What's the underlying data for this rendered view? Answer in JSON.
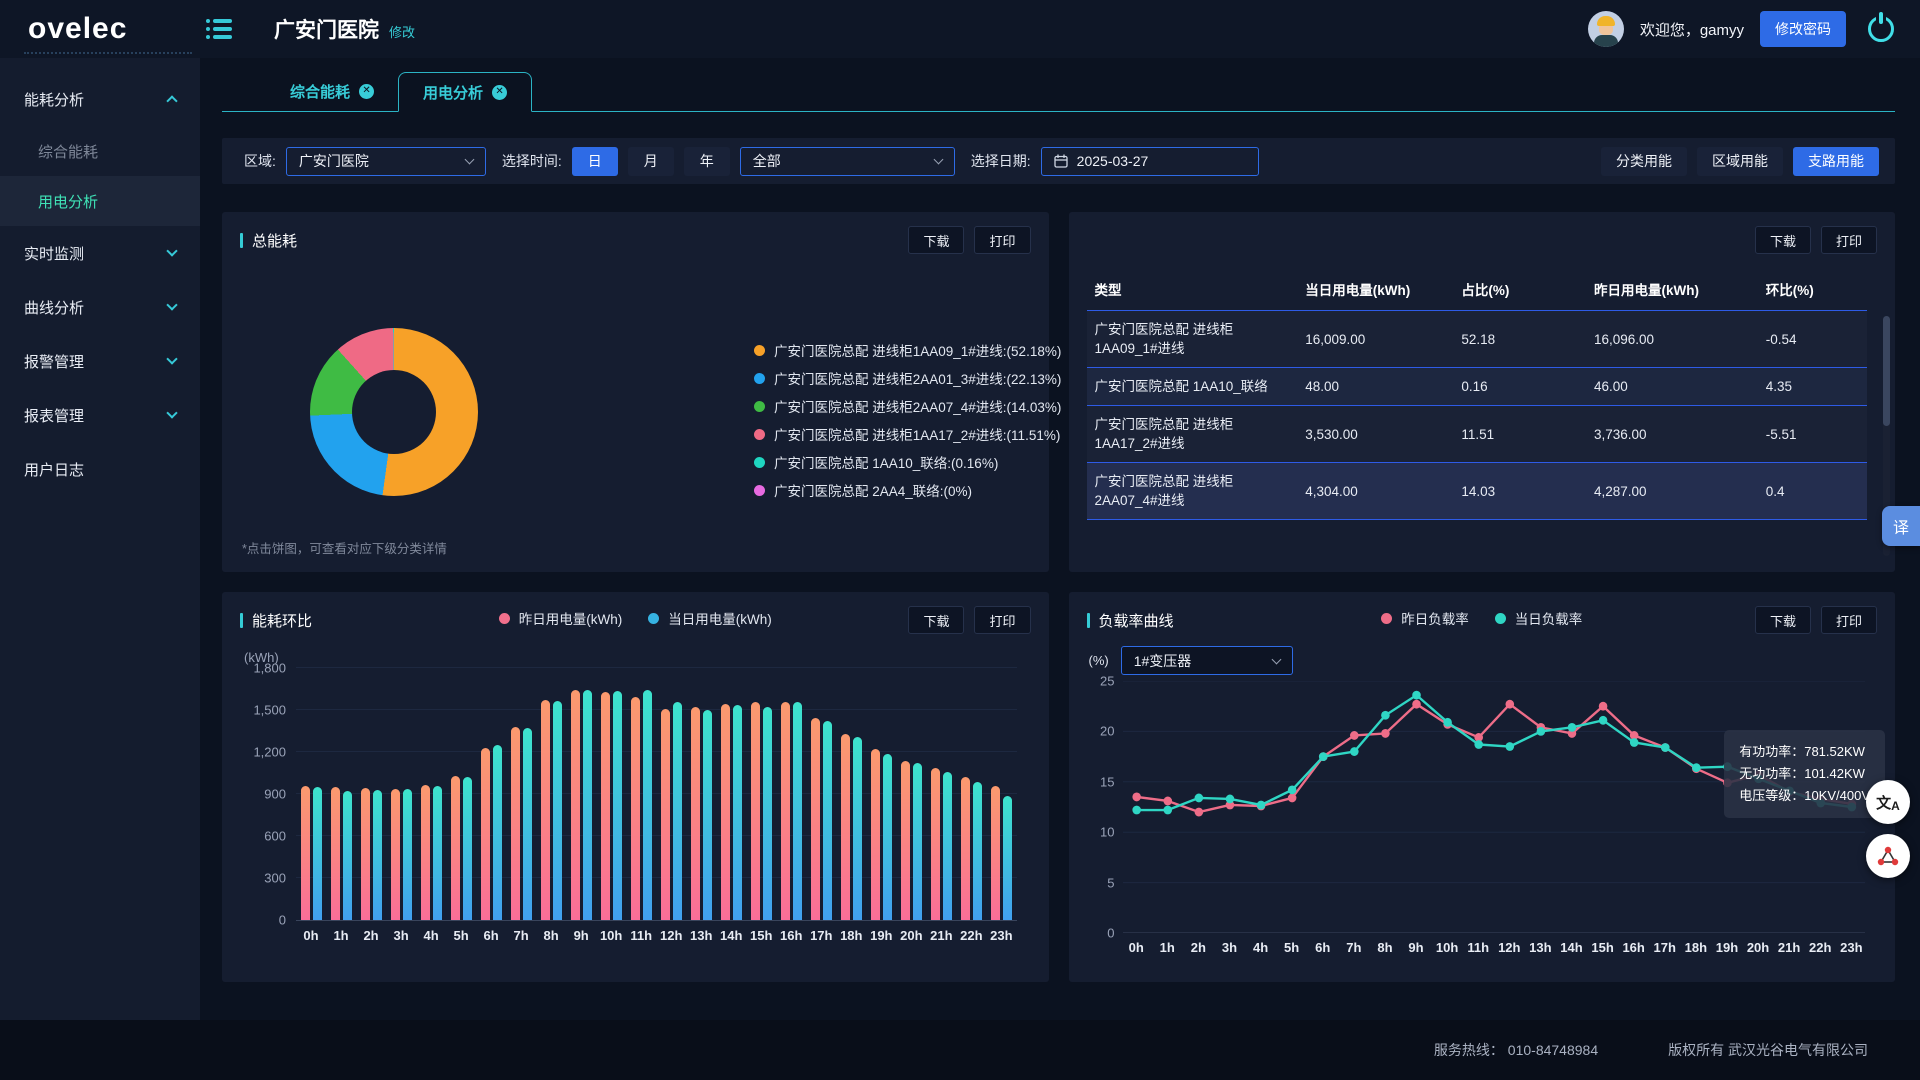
{
  "header": {
    "logo": "ovelec",
    "title": "广安门医院",
    "edit": "修改",
    "welcome": "欢迎您，gamyy",
    "change_password": "修改密码"
  },
  "sidebar": {
    "items": [
      {
        "label": "能耗分析",
        "expanded": true,
        "children": [
          {
            "label": "综合能耗",
            "active": false
          },
          {
            "label": "用电分析",
            "active": true
          }
        ]
      },
      {
        "label": "实时监测"
      },
      {
        "label": "曲线分析"
      },
      {
        "label": "报警管理"
      },
      {
        "label": "报表管理"
      },
      {
        "label": "用户日志"
      }
    ]
  },
  "tabs": [
    {
      "label": "综合能耗",
      "active": false
    },
    {
      "label": "用电分析",
      "active": true
    }
  ],
  "filters": {
    "region_label": "区域:",
    "region_value": "广安门医院",
    "time_label": "选择时间:",
    "time_day": "日",
    "time_month": "月",
    "time_year": "年",
    "time_active": "日",
    "scope_value": "全部",
    "date_label": "选择日期:",
    "date_value": "2025-03-27",
    "btn_category": "分类用能",
    "btn_region": "区域用能",
    "btn_branch": "支路用能",
    "mode_active": "支路用能"
  },
  "pie_card": {
    "title": "总能耗",
    "download": "下载",
    "print": "打印",
    "note": "*点击饼图，可查看对应下级分类详情"
  },
  "table_card": {
    "download": "下载",
    "print": "打印",
    "headers": [
      "类型",
      "当日用电量(kWh)",
      "占比(%)",
      "昨日用电量(kWh)",
      "环比(%)"
    ],
    "rows": [
      [
        "广安门医院总配 进线柜1AA09_1#进线",
        "16,009.00",
        "52.18",
        "16,096.00",
        "-0.54"
      ],
      [
        "广安门医院总配 1AA10_联络",
        "48.00",
        "0.16",
        "46.00",
        "4.35"
      ],
      [
        "广安门医院总配 进线柜1AA17_2#进线",
        "3,530.00",
        "11.51",
        "3,736.00",
        "-5.51"
      ],
      [
        "广安门医院总配 进线柜2AA07_4#进线",
        "4,304.00",
        "14.03",
        "4,287.00",
        "0.4"
      ]
    ]
  },
  "bar_card": {
    "title": "能耗环比",
    "legend1": "昨日用电量(kWh)",
    "legend2": "当日用电量(kWh)",
    "download": "下载",
    "print": "打印",
    "unit": "(kWh)"
  },
  "line_card": {
    "title": "负载率曲线",
    "legend1": "昨日负载率",
    "legend2": "当日负载率",
    "download": "下载",
    "print": "打印",
    "unit": "(%)",
    "transformer": "1#变压器",
    "tooltip": [
      "有功功率：781.52KW",
      "无功功率：101.42KW",
      "电压等级：10KV/400V"
    ]
  },
  "footer": {
    "hotline": "服务热线：  010-84748984",
    "copyright": "版权所有 武汉光谷电气有限公司"
  },
  "floating": {
    "translate": "译",
    "lang_zh": "文",
    "lang_en": "A"
  },
  "colors": {
    "accent_blue": "#2e6be6",
    "accent_cyan": "#36ccd6",
    "sidebar_active": "#3fe2b6",
    "bar_prev_top": "#fb9a6e",
    "bar_prev_bottom": "#fb6e98",
    "bar_curr_top": "#3de4cd",
    "bar_curr_bottom": "#41a0ef"
  },
  "chart_data": [
    {
      "type": "pie",
      "title": "总能耗",
      "legend_position": "right",
      "data": [
        {
          "name": "广安门医院总配 进线柜1AA09_1#进线",
          "value": 52.18,
          "label": "广安门医院总配 进线柜1AA09_1#进线:(52.18%)",
          "color": "#f7a128"
        },
        {
          "name": "广安门医院总配 进线柜2AA01_3#进线",
          "value": 22.13,
          "label": "广安门医院总配 进线柜2AA01_3#进线:(22.13%)",
          "color": "#22a2ee"
        },
        {
          "name": "广安门医院总配 进线柜2AA07_4#进线",
          "value": 14.03,
          "label": "广安门医院总配 进线柜2AA07_4#进线:(14.03%)",
          "color": "#3fbb44"
        },
        {
          "name": "广安门医院总配 进线柜1AA17_2#进线",
          "value": 11.51,
          "label": "广安门医院总配 进线柜1AA17_2#进线:(11.51%)",
          "color": "#ef6a85"
        },
        {
          "name": "广安门医院总配 1AA10_联络",
          "value": 0.16,
          "label": "广安门医院总配 1AA10_联络:(0.16%)",
          "color": "#1fd6c1"
        },
        {
          "name": "广安门医院总配 2AA4_联络",
          "value": 0,
          "label": "广安门医院总配 2AA4_联络:(0%)",
          "color": "#e76ae0"
        }
      ]
    },
    {
      "type": "bar",
      "title": "能耗环比",
      "ylabel": "(kWh)",
      "ylim": [
        0,
        1800
      ],
      "yticks": [
        "0",
        "300",
        "600",
        "900",
        "1,200",
        "1,500",
        "1,800"
      ],
      "grid": true,
      "categories": [
        "0h",
        "1h",
        "2h",
        "3h",
        "4h",
        "5h",
        "6h",
        "7h",
        "8h",
        "9h",
        "10h",
        "11h",
        "12h",
        "13h",
        "14h",
        "15h",
        "16h",
        "17h",
        "18h",
        "19h",
        "20h",
        "21h",
        "22h",
        "23h"
      ],
      "series": [
        {
          "name": "昨日用电量(kWh)",
          "values": [
            960,
            950,
            945,
            935,
            965,
            1030,
            1230,
            1380,
            1570,
            1645,
            1630,
            1590,
            1510,
            1520,
            1540,
            1560,
            1560,
            1440,
            1330,
            1225,
            1135,
            1085,
            1020,
            960
          ]
        },
        {
          "name": "当日用电量(kWh)",
          "values": [
            950,
            925,
            930,
            935,
            955,
            1020,
            1250,
            1370,
            1565,
            1645,
            1635,
            1645,
            1555,
            1500,
            1535,
            1525,
            1555,
            1425,
            1305,
            1185,
            1120,
            1060,
            985,
            885
          ]
        }
      ]
    },
    {
      "type": "line",
      "title": "负载率曲线",
      "ylabel": "(%)",
      "ylim": [
        0,
        25
      ],
      "yticks": [
        "0",
        "5",
        "10",
        "15",
        "20",
        "25"
      ],
      "grid": true,
      "categories": [
        "0h",
        "1h",
        "2h",
        "3h",
        "4h",
        "5h",
        "6h",
        "7h",
        "8h",
        "9h",
        "10h",
        "11h",
        "12h",
        "13h",
        "14h",
        "15h",
        "16h",
        "17h",
        "18h",
        "19h",
        "20h",
        "21h",
        "22h",
        "23h"
      ],
      "series": [
        {
          "name": "昨日负载率",
          "color": "#ee6d88",
          "values": [
            13.5,
            13.1,
            12.0,
            12.7,
            12.6,
            13.4,
            17.5,
            19.6,
            19.8,
            22.7,
            20.7,
            19.4,
            22.7,
            20.4,
            19.8,
            22.5,
            19.6,
            18.4,
            16.3,
            14.9,
            15.7,
            14.0,
            13.3,
            12.8
          ]
        },
        {
          "name": "当日负载率",
          "color": "#2fd6c4",
          "values": [
            12.2,
            12.2,
            13.4,
            13.3,
            12.7,
            14.2,
            17.5,
            18.0,
            21.6,
            23.6,
            20.9,
            18.7,
            18.5,
            20.0,
            20.4,
            21.1,
            18.9,
            18.4,
            16.4,
            16.5,
            15.3,
            14.1,
            12.9,
            12.5
          ]
        }
      ],
      "tooltip": [
        "有功功率：781.52KW",
        "无功功率：101.42KW",
        "电压等级：10KV/400V"
      ]
    }
  ]
}
